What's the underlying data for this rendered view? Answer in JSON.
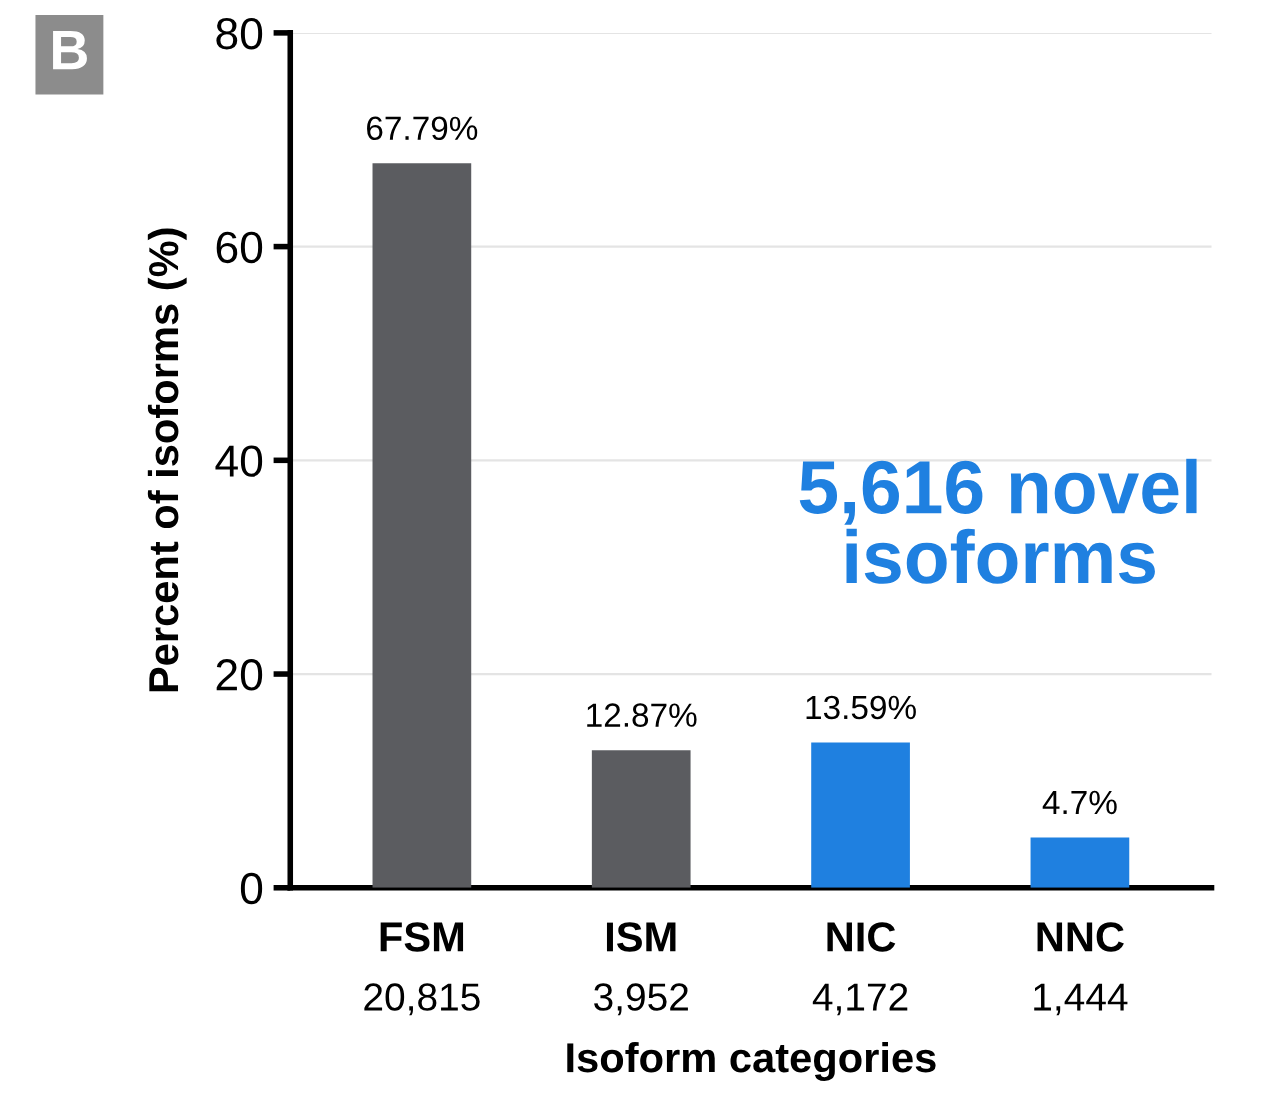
{
  "chart_data": {
    "type": "bar",
    "categories": [
      "FSM\n20,815",
      "ISM\n3,952",
      "NIC\n4,172",
      "NNC\n1,444"
    ],
    "values": [
      67.79,
      12.87,
      13.59,
      4.7
    ],
    "colors": [
      "#5b5c60",
      "#5b5c60",
      "#1f80e0",
      "#1f80e0"
    ],
    "value_labels": [
      "67.79%",
      "12.87%",
      "13.59%",
      "4.7%"
    ],
    "xlabel": "Isoform categories",
    "ylabel": "Percent of isoforms (%)",
    "ylim": [
      0,
      80
    ],
    "yticks": [
      0,
      20,
      40,
      60,
      80
    ],
    "grid": "y",
    "annotations": [
      "B",
      "5,616 novel isoforms"
    ]
  }
}
